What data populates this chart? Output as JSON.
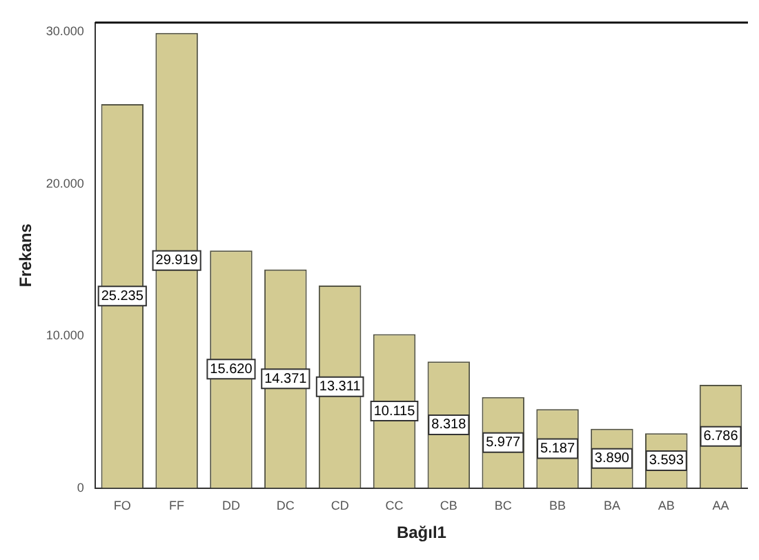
{
  "chart_data": {
    "type": "bar",
    "xlabel": "Bağıl1",
    "ylabel": "Frekans",
    "categories": [
      "FO",
      "FF",
      "DD",
      "DC",
      "CD",
      "CC",
      "CB",
      "BC",
      "BB",
      "BA",
      "AB",
      "AA"
    ],
    "values": [
      25235,
      29919,
      15620,
      14371,
      13311,
      10115,
      8318,
      5977,
      5187,
      3890,
      3593,
      6786
    ],
    "value_labels": [
      "25.235",
      "29.919",
      "15.620",
      "14.371",
      "13.311",
      "10.115",
      "8.318",
      "5.977",
      "5.187",
      "3.890",
      "3.593",
      "6.786"
    ],
    "color": "#d3cb92",
    "ylim": [
      0,
      30600
    ],
    "yticks": [
      {
        "value": 0,
        "label": "0"
      },
      {
        "value": 10000,
        "label": "10.000"
      },
      {
        "value": 20000,
        "label": "20.000"
      },
      {
        "value": 30000,
        "label": "30.000"
      }
    ],
    "grid": false,
    "legend": false
  }
}
